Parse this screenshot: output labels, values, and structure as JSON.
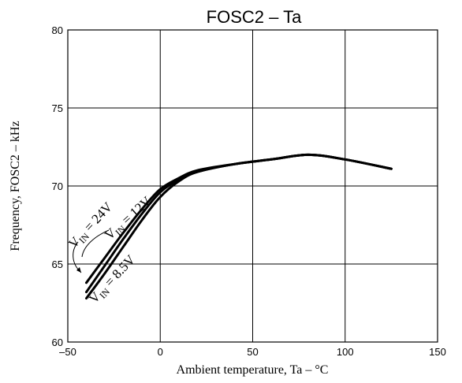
{
  "chart_data": {
    "type": "line",
    "title": "FOSC2 – Ta",
    "xlabel": "Ambient temperature, Ta – °C",
    "ylabel": "Frequency, FOSC2 – kHz",
    "xlim": [
      -50,
      150
    ],
    "ylim": [
      60,
      80
    ],
    "xticks": [
      "–50",
      "0",
      "50",
      "100",
      "150"
    ],
    "yticks": [
      "60",
      "65",
      "70",
      "75",
      "80"
    ],
    "grid": true,
    "series": [
      {
        "name": "VIN = 24V",
        "x": [
          -40,
          -30,
          -20,
          -10,
          0,
          10,
          20,
          40,
          60,
          80,
          100,
          125
        ],
        "y": [
          63.8,
          65.4,
          67.0,
          68.5,
          69.8,
          70.5,
          71.0,
          71.4,
          71.7,
          72.0,
          71.7,
          71.1
        ]
      },
      {
        "name": "VIN = 12V",
        "x": [
          -40,
          -30,
          -20,
          -10,
          0,
          10,
          20,
          40,
          60,
          80,
          100,
          125
        ],
        "y": [
          63.2,
          64.9,
          66.6,
          68.2,
          69.6,
          70.4,
          70.9,
          71.4,
          71.7,
          72.0,
          71.7,
          71.1
        ]
      },
      {
        "name": "VIN = 8.5V",
        "x": [
          -40,
          -30,
          -20,
          -10,
          0,
          10,
          20,
          40,
          60,
          80,
          100,
          125
        ],
        "y": [
          62.8,
          64.4,
          66.1,
          67.8,
          69.3,
          70.3,
          70.9,
          71.4,
          71.7,
          72.0,
          71.7,
          71.1
        ]
      }
    ],
    "annotations": [
      {
        "main": "V",
        "sub": "IN",
        "rest": " = 24V"
      },
      {
        "main": "V",
        "sub": "IN",
        "rest": " = 12V"
      },
      {
        "main": "V",
        "sub": "IN",
        "rest": " = 8.5V"
      }
    ]
  }
}
